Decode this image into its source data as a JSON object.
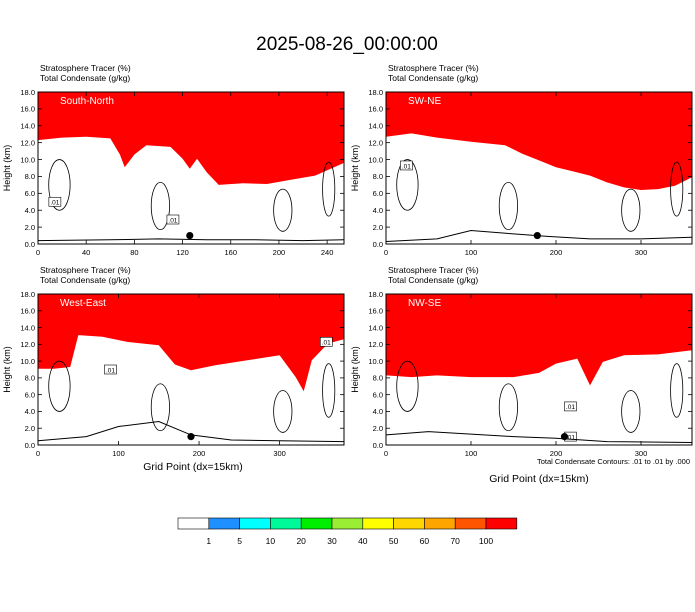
{
  "title": "2025-08-26_00:00:00",
  "caption": "Total Condensate Contours: .01 to .01 by .000",
  "colors": {
    "background": "#ffffff",
    "frame": "#000000",
    "contour": "#000000"
  },
  "colorbar": {
    "levels": [
      "1",
      "5",
      "10",
      "20",
      "30",
      "40",
      "50",
      "60",
      "70",
      "100"
    ],
    "colors": [
      "#ffffff",
      "#1e90ff",
      "#00ffff",
      "#00fa9a",
      "#00ee00",
      "#9aee34",
      "#ffff00",
      "#ffd700",
      "#ffa500",
      "#ff5500",
      "#ff0000"
    ]
  },
  "chart_data": [
    {
      "type": "heatmap",
      "panel_label": "South-North",
      "label_1": "Stratosphere Tracer   (%)",
      "label_2": "Total Condensate   (g/kg)",
      "xlabel": "",
      "ylabel": "Height (km)",
      "xlim": [
        0,
        254
      ],
      "ylim": [
        0,
        18
      ],
      "xticks": [
        "0",
        "40",
        "80",
        "120",
        "160",
        "200",
        "240"
      ],
      "xtick_values": [
        0,
        40,
        80,
        120,
        160,
        200,
        240
      ],
      "yticks": [
        "0.0",
        "2.0",
        "4.0",
        "6.0",
        "8.0",
        "10.0",
        "12.0",
        "14.0",
        "16.0",
        "18.0"
      ],
      "tropopause": [
        [
          0,
          14.2
        ],
        [
          20,
          14.5
        ],
        [
          40,
          14.6
        ],
        [
          60,
          14.4
        ],
        [
          68,
          12.5
        ],
        [
          72,
          11.0
        ],
        [
          80,
          12.5
        ],
        [
          90,
          13.6
        ],
        [
          110,
          13.4
        ],
        [
          120,
          12.0
        ],
        [
          126,
          10.8
        ],
        [
          132,
          12.0
        ],
        [
          140,
          10.4
        ],
        [
          150,
          8.9
        ],
        [
          170,
          9.1
        ],
        [
          190,
          9.0
        ],
        [
          210,
          9.5
        ],
        [
          230,
          10.0
        ],
        [
          254,
          11.5
        ]
      ],
      "cloud_contour_label": ".01",
      "contour_label_points": [
        [
          14,
          5
        ],
        [
          112,
          2.9
        ]
      ],
      "terrain": [
        [
          0,
          0.4
        ],
        [
          60,
          0.5
        ],
        [
          100,
          0.6
        ],
        [
          140,
          0.5
        ],
        [
          180,
          0.5
        ],
        [
          220,
          0.4
        ],
        [
          254,
          0.5
        ]
      ],
      "marker_x": 126
    },
    {
      "type": "heatmap",
      "panel_label": "SW-NE",
      "label_1": "Stratosphere Tracer   (%)",
      "label_2": "Total Condensate   (g/kg)",
      "xlabel": "",
      "ylabel": "Height (km)",
      "xlim": [
        0,
        360
      ],
      "ylim": [
        0,
        18
      ],
      "xticks": [
        "0",
        "100",
        "200",
        "300"
      ],
      "xtick_values": [
        0,
        100,
        200,
        300
      ],
      "yticks": [
        "0.0",
        "2.0",
        "4.0",
        "6.0",
        "8.0",
        "10.0",
        "12.0",
        "14.0",
        "16.0",
        "18.0"
      ],
      "tropopause": [
        [
          0,
          14.6
        ],
        [
          30,
          15.0
        ],
        [
          60,
          14.5
        ],
        [
          100,
          14.0
        ],
        [
          140,
          13.6
        ],
        [
          160,
          12.6
        ],
        [
          180,
          11.8
        ],
        [
          200,
          11.0
        ],
        [
          220,
          10.5
        ],
        [
          240,
          10.0
        ],
        [
          260,
          9.2
        ],
        [
          280,
          8.6
        ],
        [
          300,
          8.3
        ],
        [
          320,
          8.4
        ],
        [
          340,
          8.8
        ],
        [
          360,
          9.8
        ]
      ],
      "cloud_contour_label": ".01",
      "contour_label_points": [
        [
          24,
          9.3
        ]
      ],
      "terrain": [
        [
          0,
          0.3
        ],
        [
          60,
          0.6
        ],
        [
          100,
          1.6
        ],
        [
          150,
          1.2
        ],
        [
          190,
          0.9
        ],
        [
          240,
          0.6
        ],
        [
          300,
          0.6
        ],
        [
          360,
          0.8
        ]
      ],
      "marker_x": 178
    },
    {
      "type": "heatmap",
      "panel_label": "West-East",
      "label_1": "Stratosphere Tracer   (%)",
      "label_2": "Total Condensate   (g/kg)",
      "xlabel": "Grid Point (dx=15km)",
      "ylabel": "Height (km)",
      "xlim": [
        0,
        380
      ],
      "ylim": [
        0,
        18
      ],
      "xticks": [
        "0",
        "100",
        "200",
        "300"
      ],
      "xtick_values": [
        0,
        100,
        200,
        300
      ],
      "yticks": [
        "0.0",
        "2.0",
        "4.0",
        "6.0",
        "8.0",
        "10.0",
        "12.0",
        "14.0",
        "16.0",
        "18.0"
      ],
      "tropopause": [
        [
          0,
          11.0
        ],
        [
          20,
          11.0
        ],
        [
          40,
          11.2
        ],
        [
          50,
          15.0
        ],
        [
          80,
          14.8
        ],
        [
          110,
          14.2
        ],
        [
          150,
          13.8
        ],
        [
          170,
          11.5
        ],
        [
          190,
          10.8
        ],
        [
          220,
          11.4
        ],
        [
          260,
          12.0
        ],
        [
          300,
          12.6
        ],
        [
          320,
          10.0
        ],
        [
          330,
          8.3
        ],
        [
          340,
          12.0
        ],
        [
          360,
          14.0
        ],
        [
          380,
          14.5
        ]
      ],
      "cloud_contour_label": ".01",
      "contour_label_points": [
        [
          90,
          9.0
        ],
        [
          358,
          12.3
        ]
      ],
      "terrain": [
        [
          0,
          0.5
        ],
        [
          60,
          1.0
        ],
        [
          100,
          2.2
        ],
        [
          150,
          2.8
        ],
        [
          190,
          1.2
        ],
        [
          240,
          0.6
        ],
        [
          300,
          0.5
        ],
        [
          380,
          0.4
        ]
      ],
      "marker_x": 190
    },
    {
      "type": "heatmap",
      "panel_label": "NW-SE",
      "label_1": "Stratosphere Tracer   (%)",
      "label_2": "Total Condensate   (g/kg)",
      "xlabel": "Grid Point (dx=15km)",
      "ylabel": "Height (km)",
      "xlim": [
        0,
        360
      ],
      "ylim": [
        0,
        18
      ],
      "xticks": [
        "0",
        "100",
        "200",
        "300"
      ],
      "xtick_values": [
        0,
        100,
        200,
        300
      ],
      "yticks": [
        "0.0",
        "2.0",
        "4.0",
        "6.0",
        "8.0",
        "10.0",
        "12.0",
        "14.0",
        "16.0",
        "18.0"
      ],
      "tropopause": [
        [
          0,
          10.2
        ],
        [
          30,
          10.0
        ],
        [
          60,
          10.2
        ],
        [
          100,
          10.0
        ],
        [
          150,
          10.0
        ],
        [
          180,
          10.5
        ],
        [
          200,
          11.6
        ],
        [
          225,
          12.2
        ],
        [
          240,
          9.0
        ],
        [
          255,
          11.8
        ],
        [
          280,
          12.6
        ],
        [
          320,
          12.7
        ],
        [
          360,
          13.2
        ]
      ],
      "cloud_contour_label": ".01",
      "contour_label_points": [
        [
          217,
          4.6
        ],
        [
          217,
          1.0
        ]
      ],
      "terrain": [
        [
          0,
          1.2
        ],
        [
          50,
          1.6
        ],
        [
          100,
          1.3
        ],
        [
          150,
          1.0
        ],
        [
          200,
          0.8
        ],
        [
          260,
          0.4
        ],
        [
          360,
          0.3
        ]
      ],
      "marker_x": 210
    }
  ]
}
